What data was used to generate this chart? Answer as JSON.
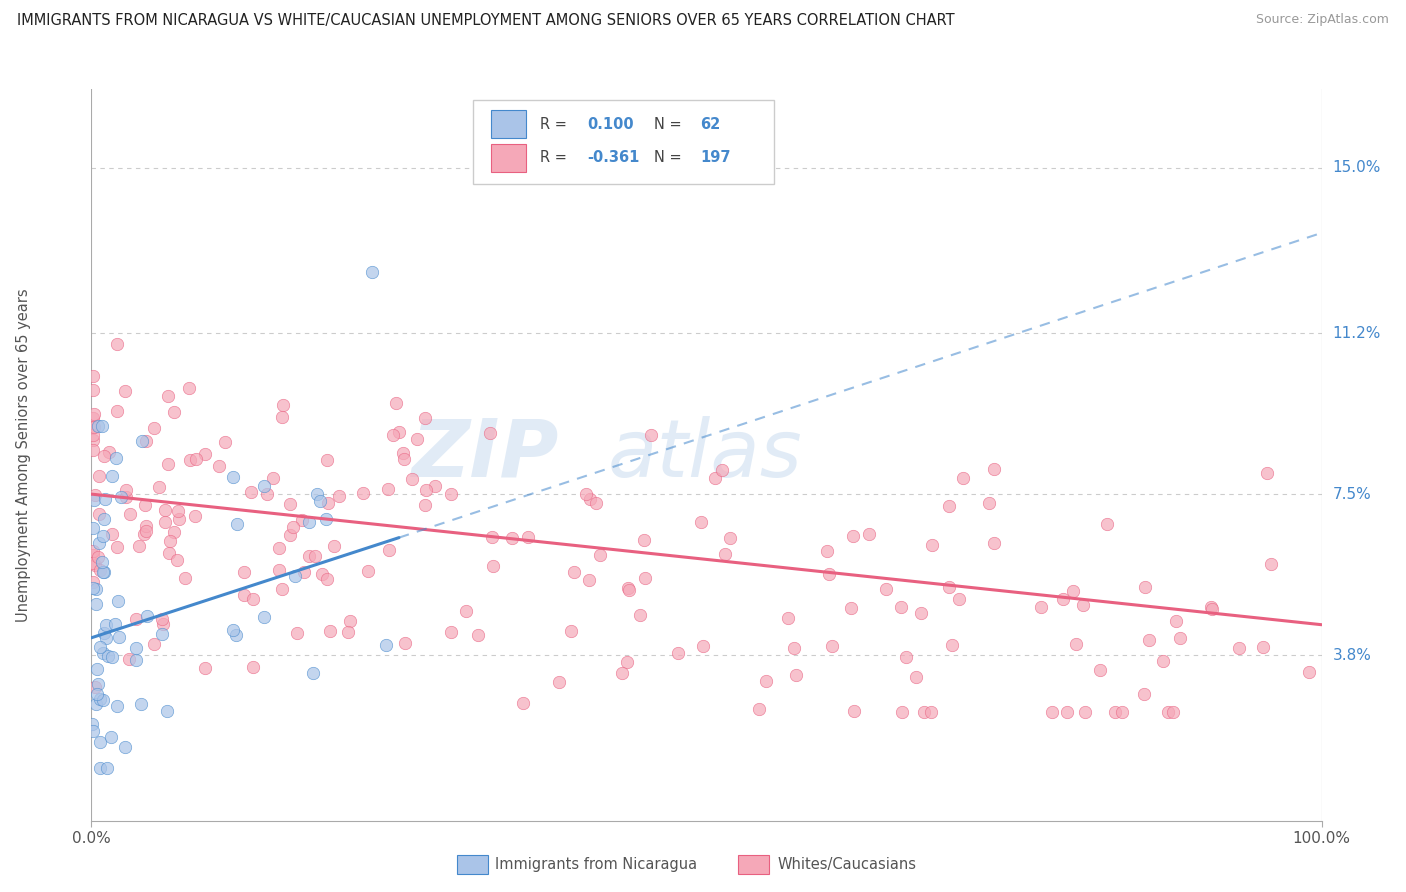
{
  "title": "IMMIGRANTS FROM NICARAGUA VS WHITE/CAUCASIAN UNEMPLOYMENT AMONG SENIORS OVER 65 YEARS CORRELATION CHART",
  "source": "Source: ZipAtlas.com",
  "ylabel": "Unemployment Among Seniors over 65 years",
  "R1": 0.1,
  "N1": 62,
  "R2": -0.361,
  "N2": 197,
  "legend_label1": "Immigrants from Nicaragua",
  "legend_label2": "Whites/Caucasians",
  "color1": "#aac4e8",
  "color2": "#f5a8b8",
  "line_color_blue": "#4488cc",
  "line_color_pink": "#e86080",
  "ytick_labels": [
    "3.8%",
    "7.5%",
    "11.2%",
    "15.0%"
  ],
  "ytick_values": [
    0.038,
    0.075,
    0.112,
    0.15
  ],
  "xtick_labels": [
    "0.0%",
    "100.0%"
  ],
  "xlim": [
    0.0,
    1.0
  ],
  "ylim": [
    0.0,
    0.168
  ],
  "background_color": "#ffffff",
  "blue_label_color": "#4488cc",
  "grid_color": "#cccccc",
  "text_color": "#555555"
}
